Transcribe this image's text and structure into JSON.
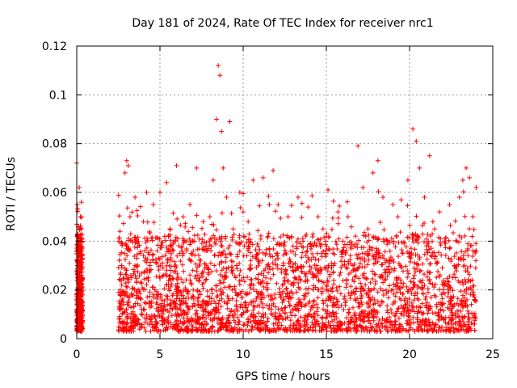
{
  "chart_data": {
    "type": "scatter",
    "title": "Day 181 of 2024, Rate Of TEC Index for receiver nrc1",
    "xlabel": "GPS time / hours",
    "ylabel": "ROTI / TECUs",
    "xlim": [
      0,
      25
    ],
    "ylim": [
      0,
      0.12
    ],
    "xticks": [
      0,
      5,
      10,
      15,
      20,
      25
    ],
    "yticks": [
      0,
      0.02,
      0.04,
      0.06,
      0.08,
      0.1,
      0.12
    ],
    "xtick_labels": [
      "0",
      "5",
      "10",
      "15",
      "20",
      "25"
    ],
    "ytick_labels": [
      "0",
      "0.02",
      "0.04",
      "0.06",
      "0.08",
      "0.1",
      "0.12"
    ],
    "grid": true,
    "marker": "+",
    "series": [
      {
        "name": "nrc1",
        "color": "#ff0000",
        "x": [
          0.0,
          0.03,
          0.05,
          0.08,
          0.1,
          0.12,
          0.15,
          0.18,
          0.2,
          0.22,
          0.25,
          0.28,
          0.3,
          0.02,
          0.07,
          0.12,
          0.17,
          0.22,
          0.27,
          2.6,
          2.7,
          2.8,
          2.9,
          3.0,
          3.1,
          3.2,
          3.3,
          3.4,
          3.5,
          3.6,
          3.7,
          3.8,
          3.9,
          4.0,
          4.2,
          4.4,
          4.6,
          4.8,
          5.0,
          5.2,
          5.4,
          5.6,
          5.8,
          6.0,
          6.2,
          6.4,
          6.6,
          6.8,
          7.0,
          7.2,
          7.4,
          7.6,
          7.8,
          8.0,
          8.2,
          8.4,
          8.5,
          8.6,
          8.7,
          8.8,
          9.0,
          9.2,
          9.4,
          9.6,
          9.8,
          10.0,
          10.3,
          10.6,
          10.9,
          11.2,
          11.5,
          11.8,
          12.1,
          12.4,
          12.7,
          13.0,
          13.3,
          13.6,
          13.9,
          14.2,
          14.5,
          14.8,
          15.1,
          15.4,
          15.7,
          16.0,
          16.3,
          16.6,
          16.9,
          17.2,
          17.5,
          17.8,
          18.1,
          18.4,
          18.7,
          19.0,
          19.3,
          19.6,
          19.9,
          20.2,
          20.4,
          20.6,
          20.9,
          21.2,
          21.5,
          21.8,
          22.1,
          22.4,
          22.7,
          23.0,
          23.2,
          23.4,
          23.6,
          23.8,
          24.0
        ],
        "y": [
          0.072,
          0.055,
          0.03,
          0.02,
          0.01,
          0.005,
          0.062,
          0.045,
          0.035,
          0.018,
          0.008,
          0.056,
          0.025,
          0.015,
          0.04,
          0.012,
          0.028,
          0.05,
          0.009,
          0.044,
          0.03,
          0.015,
          0.068,
          0.073,
          0.071,
          0.05,
          0.025,
          0.01,
          0.058,
          0.04,
          0.02,
          0.035,
          0.012,
          0.048,
          0.06,
          0.03,
          0.055,
          0.018,
          0.06,
          0.026,
          0.064,
          0.045,
          0.015,
          0.071,
          0.035,
          0.05,
          0.02,
          0.055,
          0.04,
          0.07,
          0.025,
          0.048,
          0.015,
          0.05,
          0.065,
          0.09,
          0.112,
          0.108,
          0.085,
          0.07,
          0.058,
          0.089,
          0.045,
          0.03,
          0.06,
          0.052,
          0.048,
          0.065,
          0.035,
          0.066,
          0.042,
          0.069,
          0.055,
          0.03,
          0.05,
          0.038,
          0.058,
          0.04,
          0.054,
          0.025,
          0.05,
          0.045,
          0.061,
          0.035,
          0.052,
          0.04,
          0.05,
          0.03,
          0.079,
          0.062,
          0.045,
          0.068,
          0.073,
          0.058,
          0.04,
          0.055,
          0.05,
          0.035,
          0.065,
          0.086,
          0.081,
          0.07,
          0.058,
          0.075,
          0.045,
          0.052,
          0.04,
          0.055,
          0.03,
          0.058,
          0.065,
          0.07,
          0.066,
          0.05,
          0.062
        ]
      }
    ]
  }
}
